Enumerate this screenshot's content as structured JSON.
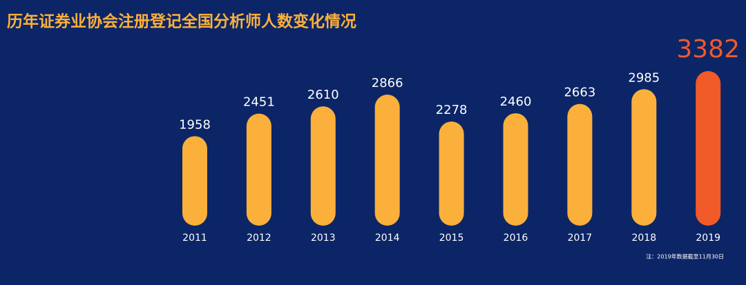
{
  "chart_data": {
    "type": "bar",
    "title": "历年证券业协会注册登记全国分析师人数变化情况",
    "categories": [
      "2011",
      "2012",
      "2013",
      "2014",
      "2015",
      "2016",
      "2017",
      "2018",
      "2019"
    ],
    "values": [
      1958,
      2451,
      2610,
      2866,
      2278,
      2460,
      2663,
      2985,
      3382
    ],
    "colors": [
      "#fbb03b",
      "#fbb03b",
      "#fbb03b",
      "#fbb03b",
      "#fbb03b",
      "#fbb03b",
      "#fbb03b",
      "#fbb03b",
      "#f15a29"
    ],
    "note": "注：2019年数据截至11月30日"
  }
}
